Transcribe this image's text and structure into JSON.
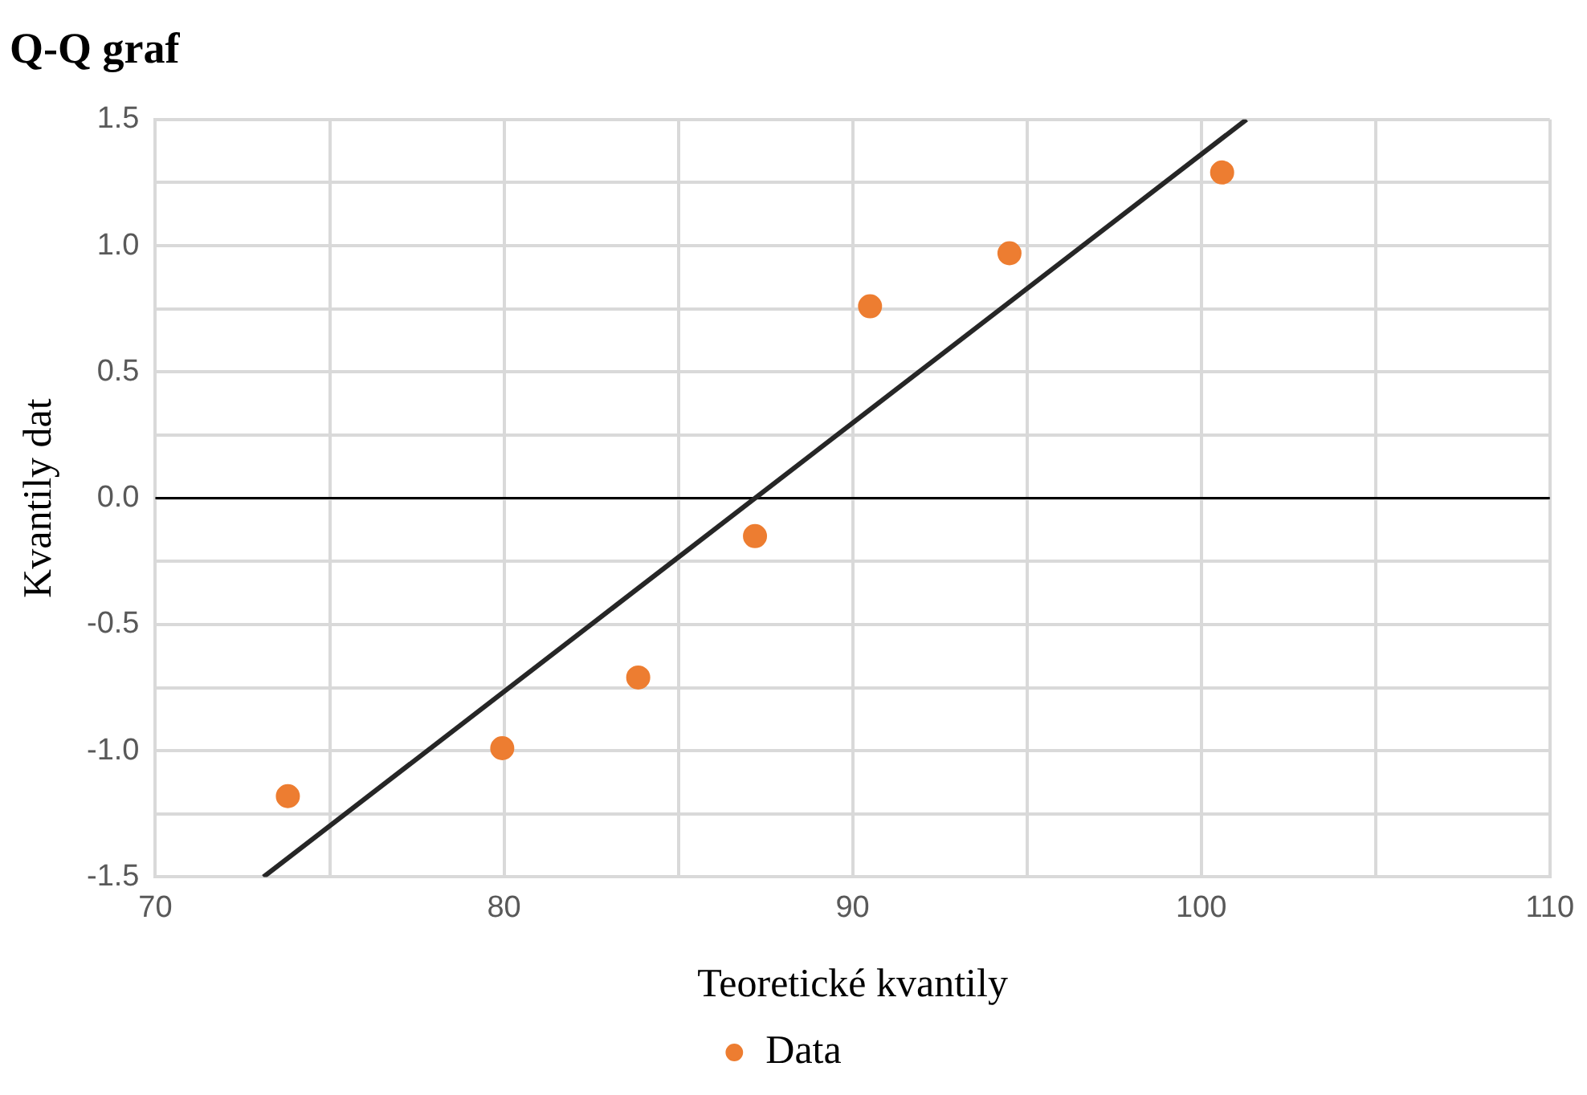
{
  "chart_data": {
    "type": "scatter",
    "title": "Q-Q graf",
    "xlabel": "Teoretické kvantily",
    "ylabel": "Kvantily dat",
    "series": [
      {
        "name": "Data",
        "marker": "circle",
        "color": "#ed7d31",
        "x": [
          73.8,
          79.95,
          83.85,
          87.2,
          90.5,
          94.5,
          100.6
        ],
        "values": [
          -1.18,
          -0.99,
          -0.71,
          -0.15,
          0.76,
          0.97,
          1.29
        ]
      },
      {
        "type": "line",
        "marker": "none",
        "color": "#262626",
        "x": [
          73.1,
          101.3
        ],
        "values": [
          -1.5,
          1.5
        ]
      }
    ],
    "xlim": [
      70,
      110
    ],
    "xticks": [
      70,
      {
        "value": 75,
        "label": null
      },
      80,
      {
        "value": 85,
        "label": null
      },
      90,
      {
        "value": 95,
        "label": null
      },
      100,
      {
        "value": 105,
        "label": null
      },
      110
    ],
    "ylim": [
      -1.5,
      1.5
    ],
    "yticks": [
      {
        "value": -1.5,
        "label": "-1.5"
      },
      {
        "value": -1.25,
        "label": null
      },
      {
        "value": -1,
        "label": "-1.0"
      },
      {
        "value": -0.75,
        "label": null
      },
      {
        "value": -0.5,
        "label": "-0.5"
      },
      {
        "value": -0.25,
        "label": null
      },
      {
        "value": 0,
        "label": "0.0"
      },
      {
        "value": 0.25,
        "label": null
      },
      {
        "value": 0.5,
        "label": "0.5"
      },
      {
        "value": 0.75,
        "label": null
      },
      {
        "value": 1,
        "label": "1.0"
      },
      {
        "value": 1.25,
        "label": null
      },
      {
        "value": 1.5,
        "label": "1.5"
      }
    ],
    "grid": true,
    "legend": "bottom",
    "line_style": "solid",
    "ref_lines": [
      {
        "axis": "y",
        "value": 0,
        "color": "#000000"
      }
    ]
  }
}
